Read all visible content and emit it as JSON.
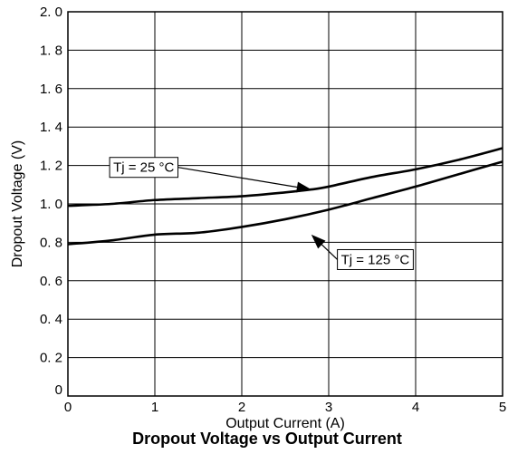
{
  "chart_data": {
    "type": "line",
    "title": "Dropout Voltage vs Output Current",
    "xlabel": "Output Current (A)",
    "ylabel": "Dropout Voltage (V)",
    "xlim": [
      0,
      5
    ],
    "ylim": [
      0,
      2.0
    ],
    "grid": true,
    "x_ticks": [
      "0",
      "1",
      "2",
      "3",
      "4",
      "5"
    ],
    "y_ticks": [
      "0",
      "0. 2",
      "0. 4",
      "0. 6",
      "0. 8",
      "1. 0",
      "1. 2",
      "1. 4",
      "1. 6",
      "1. 8",
      "2. 0"
    ],
    "series": [
      {
        "name": "Tj = 25 °C",
        "x": [
          0,
          0.5,
          1.0,
          1.5,
          2.0,
          2.5,
          2.8,
          3.0,
          3.5,
          4.0,
          4.5,
          5.0
        ],
        "y": [
          0.99,
          1.0,
          1.02,
          1.03,
          1.04,
          1.06,
          1.075,
          1.09,
          1.14,
          1.18,
          1.23,
          1.29
        ]
      },
      {
        "name": "Tj = 125 °C",
        "x": [
          0,
          0.5,
          1.0,
          1.5,
          2.0,
          2.5,
          3.0,
          3.5,
          4.0,
          4.5,
          5.0
        ],
        "y": [
          0.79,
          0.81,
          0.84,
          0.85,
          0.88,
          0.92,
          0.97,
          1.03,
          1.09,
          1.155,
          1.22
        ]
      }
    ],
    "annotations": [
      {
        "text": "Tj = 25 °C",
        "series": 0,
        "arrow_x": 2.8,
        "arrow_y": 1.075,
        "box_x": 0.48,
        "box_y": 1.19
      },
      {
        "text": "Tj = 125 °C",
        "series": 1,
        "arrow_x": 2.8,
        "arrow_y": 0.84,
        "box_x": 3.1,
        "box_y": 0.71
      }
    ]
  }
}
